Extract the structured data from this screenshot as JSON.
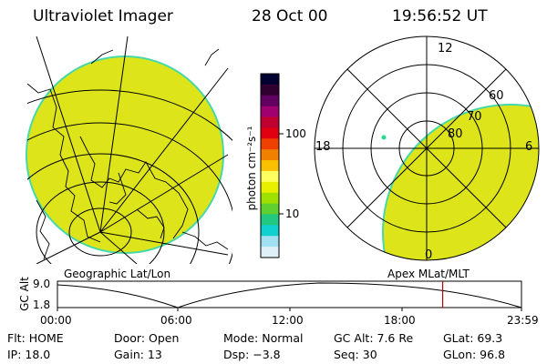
{
  "header": {
    "title": "Ultraviolet Imager",
    "date": "28 Oct 00",
    "time": "19:56:52 UT"
  },
  "colorbar": {
    "unit_label": "photon cm⁻²s⁻¹",
    "tick_labels": [
      "100",
      "10"
    ],
    "colors": [
      "#000033",
      "#300030",
      "#600060",
      "#a00070",
      "#c00030",
      "#e00010",
      "#f04000",
      "#f08000",
      "#f8c000",
      "#ffff60",
      "#e8f000",
      "#a0e000",
      "#60d030",
      "#20c880",
      "#10d0d0",
      "#a0e0f0",
      "#e0f0f8"
    ]
  },
  "map_left": {
    "label": "Geographic Lat/Lon",
    "fill_color": "#dde51a",
    "edge_color": "#48d8a8"
  },
  "polar_right": {
    "label": "Apex MLat/MLT",
    "mlt_labels": {
      "top": "12",
      "left": "18",
      "right": "6",
      "bottom": "0"
    },
    "lat_labels": [
      "60",
      "70",
      "80"
    ],
    "fill_color": "#dde51a",
    "edge_color": "#48d8a8",
    "marker_color": "#2ad88a"
  },
  "timeline": {
    "y_axis_label": "GC Alt",
    "y_ticks": [
      "9.0",
      "1.8"
    ],
    "x_ticks": [
      "00:00",
      "06:00",
      "12:00",
      "18:00",
      "23:59"
    ],
    "current_time_fraction": 0.8303,
    "marker_color": "#c00000"
  },
  "status": {
    "flt": "Flt: HOME",
    "ip": "IP: 18.0",
    "door": "Door: Open",
    "gain": "Gain: 13",
    "mode": "Mode: Normal",
    "dsp": "Dsp:   −3.8",
    "gc_alt": "GC Alt: 7.6 Re",
    "seq": "Seq: 30",
    "glat": "GLat:  69.3",
    "glon": "GLon:  96.8"
  }
}
